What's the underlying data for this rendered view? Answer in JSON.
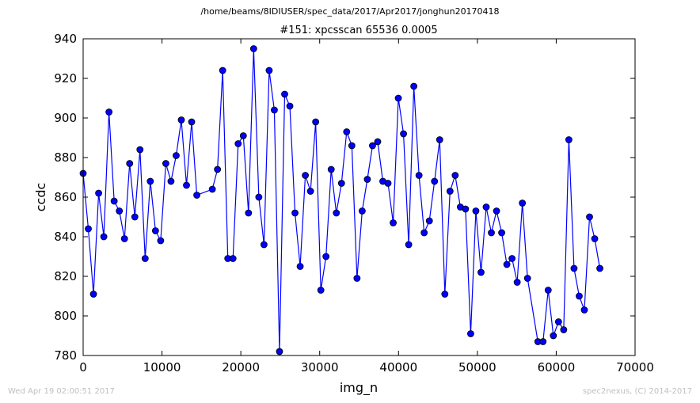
{
  "page": {
    "suptitle": "/home/beams/8IDIUSER/spec_data/2017/Apr2017/jonghun20170418",
    "footer_left": "Wed Apr 19 02:00:51 2017",
    "footer_right": "spec2nexus, (C) 2014-2017"
  },
  "chart_data": {
    "type": "line",
    "title": "#151: xpcsscan 65536 0.0005",
    "xlabel": "img_n",
    "ylabel": "ccdc",
    "xlim": [
      0,
      70000
    ],
    "ylim": [
      780,
      940
    ],
    "xticks": [
      0,
      10000,
      20000,
      30000,
      40000,
      50000,
      60000,
      70000
    ],
    "yticks": [
      780,
      800,
      820,
      840,
      860,
      880,
      900,
      920,
      940
    ],
    "grid": false,
    "legend": false,
    "colors": {
      "line": "#0000ff",
      "marker_fill": "#0000ff",
      "marker_edge": "#000000"
    },
    "series": [
      {
        "x": [
          0,
          655,
          1311,
          1966,
          2621,
          3277,
          3932,
          4588,
          5243,
          5898,
          6554,
          7209,
          7864,
          8520,
          9175,
          9830,
          10486,
          11141,
          11796,
          12452,
          13107,
          13763,
          14418,
          16384,
          17039,
          17695,
          18350,
          19005,
          19661,
          20316,
          20972,
          21627,
          22282,
          22938,
          23593,
          24248,
          24904,
          25559,
          26215,
          26870,
          27525,
          28181,
          28836,
          29491,
          30147,
          30802,
          31458,
          32113,
          32768,
          33424,
          34079,
          34734,
          35390,
          36045,
          36700,
          37356,
          38011,
          38667,
          39322,
          39977,
          40633,
          41288,
          41943,
          42599,
          43254,
          43909,
          44565,
          45220,
          45876,
          46531,
          47186,
          47842,
          48497,
          49152,
          49808,
          50463,
          51118,
          51774,
          52429,
          53084,
          53740,
          54395,
          55050,
          55706,
          56361,
          57672,
          58327,
          58982,
          59638,
          60293,
          60948,
          61604,
          62259,
          62915,
          63570,
          64225,
          64881,
          65536
        ],
        "y": [
          872,
          844,
          811,
          862,
          840,
          903,
          858,
          853,
          839,
          877,
          850,
          884,
          829,
          868,
          843,
          838,
          877,
          868,
          881,
          899,
          866,
          898,
          861,
          864,
          874,
          924,
          829,
          829,
          887,
          891,
          852,
          935,
          860,
          836,
          924,
          904,
          782,
          912,
          906,
          852,
          825,
          871,
          863,
          898,
          813,
          830,
          874,
          852,
          867,
          893,
          886,
          819,
          853,
          869,
          886,
          888,
          868,
          867,
          847,
          910,
          892,
          836,
          916,
          871,
          842,
          848,
          868,
          889,
          811,
          863,
          871,
          855,
          854,
          791,
          853,
          822,
          855,
          842,
          853,
          842,
          826,
          829,
          817,
          857,
          819,
          787,
          787,
          813,
          790,
          797,
          793,
          889,
          824,
          810,
          803,
          850,
          839,
          824
        ]
      }
    ]
  }
}
